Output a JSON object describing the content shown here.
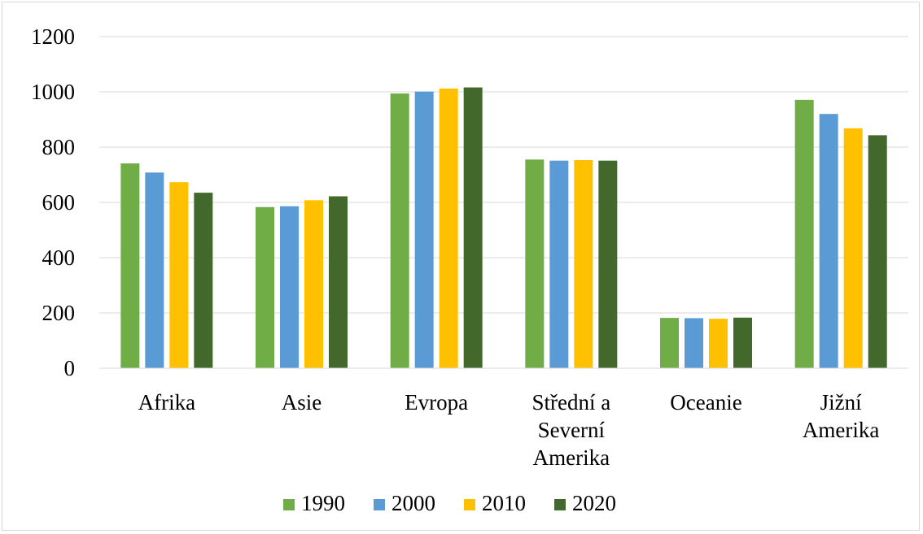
{
  "chart_data": {
    "type": "bar",
    "categories": [
      [
        "Afrika"
      ],
      [
        "Asie"
      ],
      [
        "Evropa"
      ],
      [
        "Střední a",
        "Severní",
        "Amerika"
      ],
      [
        "Oceanie"
      ],
      [
        "Jižní",
        "Amerika"
      ]
    ],
    "series": [
      {
        "name": "1990",
        "color": "#70ad47",
        "values": [
          741,
          583,
          994,
          755,
          182,
          971
        ]
      },
      {
        "name": "2000",
        "color": "#5b9bd5",
        "values": [
          708,
          586,
          1001,
          751,
          181,
          920
        ]
      },
      {
        "name": "2010",
        "color": "#ffc000",
        "values": [
          673,
          608,
          1012,
          753,
          179,
          868
        ]
      },
      {
        "name": "2020",
        "color": "#43682b",
        "values": [
          635,
          622,
          1016,
          751,
          183,
          843
        ]
      }
    ],
    "y_ticks": [
      0,
      200,
      400,
      600,
      800,
      1000,
      1200
    ],
    "ylim": [
      0,
      1200
    ],
    "grid": true,
    "legend": "bottom",
    "gridline_color": "#d9d9d9"
  }
}
